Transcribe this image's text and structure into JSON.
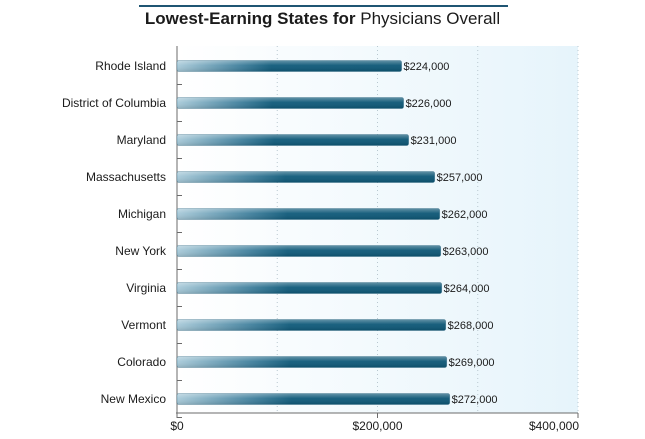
{
  "chart_data": {
    "type": "bar",
    "orientation": "horizontal",
    "title_bold": "Lowest-Earning States for",
    "title_light": "Physicians Overall",
    "categories": [
      "Rhode Island",
      "District of Columbia",
      "Maryland",
      "Massachusetts",
      "Michigan",
      "New York",
      "Virginia",
      "Vermont",
      "Colorado",
      "New Mexico"
    ],
    "values": [
      224000,
      226000,
      231000,
      257000,
      262000,
      263000,
      264000,
      268000,
      269000,
      272000
    ],
    "value_labels": [
      "$224,000",
      "$226,000",
      "$231,000",
      "$257,000",
      "$262,000",
      "$263,000",
      "$264,000",
      "$268,000",
      "$269,000",
      "$272,000"
    ],
    "x_ticks": [
      {
        "value": 0,
        "label": "$0"
      },
      {
        "value": 200000,
        "label": "$200,000"
      },
      {
        "value": 400000,
        "label": "$400,000"
      }
    ],
    "xlim": [
      0,
      400000
    ],
    "xlabel": "",
    "ylabel": "",
    "grid": true,
    "legend": "none",
    "colors": {
      "bar_dark": "#0d5878",
      "bar_light": "#a6c8d8",
      "plot_bg_left": "#ffffff",
      "plot_bg_right": "#e8f5fb",
      "title_rule": "#1f5573"
    }
  }
}
